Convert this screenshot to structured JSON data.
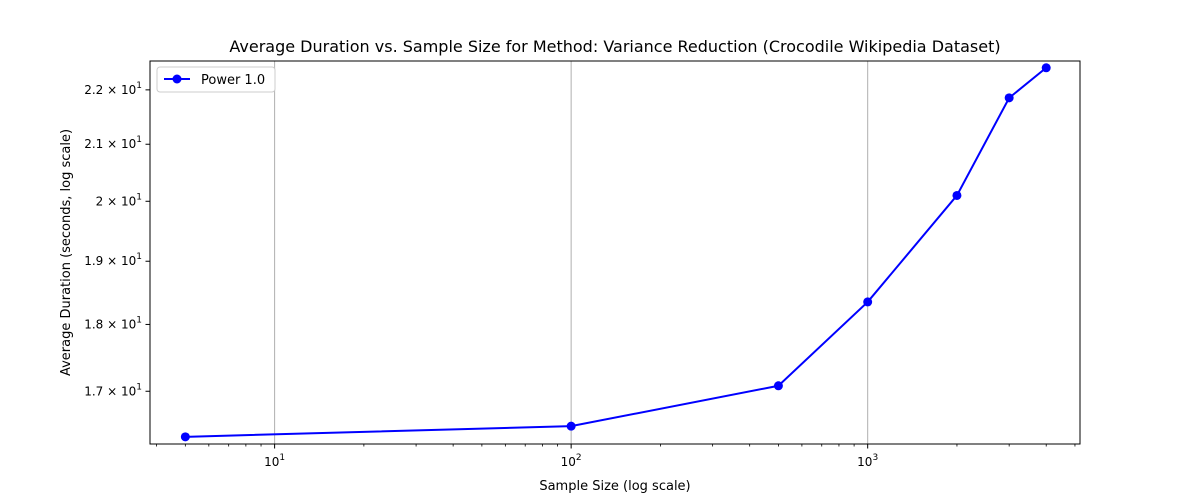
{
  "chart_data": {
    "type": "line",
    "title": "Average Duration vs. Sample Size for Method: Variance Reduction (Crocodile Wikipedia Dataset)",
    "xlabel": "Sample Size (log scale)",
    "ylabel": "Average Duration (seconds, log scale)",
    "xscale": "log",
    "yscale": "log",
    "xlim": [
      3.8,
      5200
    ],
    "ylim": [
      16.25,
      22.55
    ],
    "x_ticks": [
      {
        "value": 10,
        "base": "10",
        "exp": "1"
      },
      {
        "value": 100,
        "base": "10",
        "exp": "2"
      },
      {
        "value": 1000,
        "base": "10",
        "exp": "3"
      }
    ],
    "y_ticks": [
      {
        "value": 17,
        "mant": "1.7",
        "exp": "1"
      },
      {
        "value": 18,
        "mant": "1.8",
        "exp": "1"
      },
      {
        "value": 19,
        "mant": "1.9",
        "exp": "1"
      },
      {
        "value": 20,
        "mant": "2",
        "exp": "1"
      },
      {
        "value": 21,
        "mant": "2.1",
        "exp": "1"
      },
      {
        "value": 22,
        "mant": "2.2",
        "exp": "1"
      }
    ],
    "grid": "x-major",
    "legend_position": "top-left",
    "series": [
      {
        "name": "Power 1.0",
        "color": "#0000ff",
        "marker": "circle",
        "x": [
          5,
          100,
          500,
          1000,
          2000,
          3000,
          4000
        ],
        "y": [
          16.35,
          16.5,
          17.08,
          18.35,
          20.1,
          21.85,
          22.42
        ]
      }
    ]
  }
}
